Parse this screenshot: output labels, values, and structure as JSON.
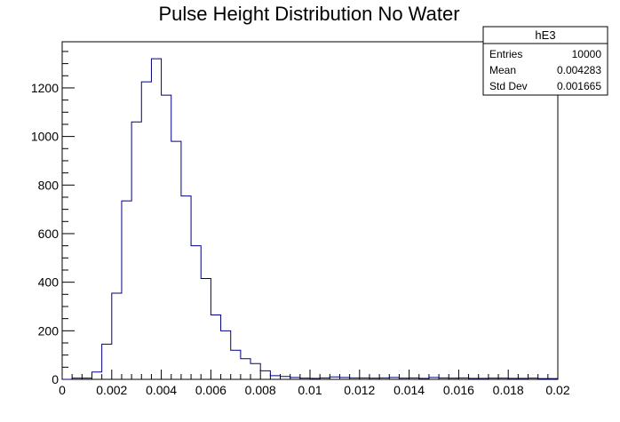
{
  "chart_data": {
    "type": "bar",
    "title": "Pulse Height Distribution No Water",
    "xlabel": "",
    "ylabel": "",
    "xlim": [
      0,
      0.02
    ],
    "ylim": [
      0,
      1390
    ],
    "bin_width": 0.0004,
    "x_tick_labels": [
      "0",
      "0.002",
      "0.004",
      "0.006",
      "0.008",
      "0.01",
      "0.012",
      "0.014",
      "0.016",
      "0.018",
      "0.02"
    ],
    "x_tick_values": [
      0,
      0.002,
      0.004,
      0.006,
      0.008,
      0.01,
      0.012,
      0.014,
      0.016,
      0.018,
      0.02
    ],
    "y_tick_labels": [
      "0",
      "200",
      "400",
      "600",
      "800",
      "1000",
      "1200"
    ],
    "y_tick_values": [
      0,
      200,
      400,
      600,
      800,
      1000,
      1200
    ],
    "series": [
      {
        "color": "#000080",
        "bin_edges": [
          0,
          0.0004,
          0.0008,
          0.0012,
          0.0016,
          0.002,
          0.0024,
          0.0028,
          0.0032,
          0.0036,
          0.004,
          0.0044,
          0.0048,
          0.0052,
          0.0056,
          0.006,
          0.0064,
          0.0068,
          0.0072,
          0.0076,
          0.008,
          0.0084,
          0.0088,
          0.0092,
          0.0096,
          0.01,
          0.0104,
          0.0108,
          0.0112,
          0.0116,
          0.012,
          0.0124,
          0.0128,
          0.0132,
          0.0136,
          0.014,
          0.0144,
          0.0148,
          0.0152,
          0.0156,
          0.016,
          0.0164,
          0.0168,
          0.0172,
          0.0176,
          0.018,
          0.0184,
          0.0188,
          0.0192,
          0.0196,
          0.02
        ],
        "values": [
          0,
          5,
          5,
          30,
          145,
          355,
          735,
          1060,
          1225,
          1320,
          1170,
          980,
          755,
          550,
          415,
          265,
          200,
          120,
          85,
          65,
          35,
          15,
          12,
          8,
          5,
          4,
          6,
          10,
          8,
          6,
          6,
          5,
          6,
          8,
          5,
          6,
          4,
          8,
          6,
          5,
          6,
          4,
          4,
          5,
          5,
          4,
          4,
          5,
          3,
          3
        ]
      }
    ]
  },
  "stats_box": {
    "name": "hE3",
    "rows": [
      {
        "label": "Entries",
        "value": "10000"
      },
      {
        "label": "Mean",
        "value": "0.004283"
      },
      {
        "label": "Std Dev",
        "value": "0.001665"
      }
    ]
  }
}
